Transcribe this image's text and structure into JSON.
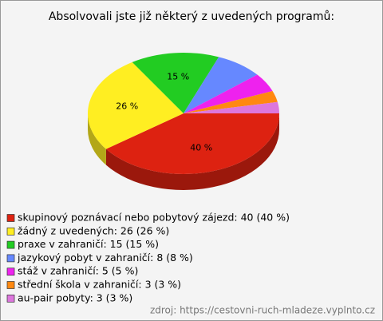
{
  "chart_data": {
    "type": "pie",
    "title": "Absolvovali jste již některý z uvedených programů:",
    "categories": [
      "skupinový poznávací nebo pobytový zájezd: 40 (40 %)",
      "žádný z uvedených: 26 (26 %)",
      "praxe v zahraničí: 15 (15 %)",
      "jazykový pobyt v zahraničí: 8 (8 %)",
      "stáž v zahraničí: 5 (5 %)",
      "střední škola v zahraničí: 3 (3 %)",
      "au-pair pobyty: 3 (3 %)"
    ],
    "values": [
      40,
      26,
      15,
      8,
      5,
      3,
      3
    ],
    "value_labels": [
      "40 %",
      "26 %",
      "15 %",
      null,
      null,
      null,
      null
    ],
    "colors": [
      "#dd2211",
      "#ffee22",
      "#22cc22",
      "#6688ff",
      "#ee22ee",
      "#ff8811",
      "#dd77dd"
    ],
    "source": "zdroj: https://cestovni-ruch-mladeze.vyplnto.cz"
  }
}
